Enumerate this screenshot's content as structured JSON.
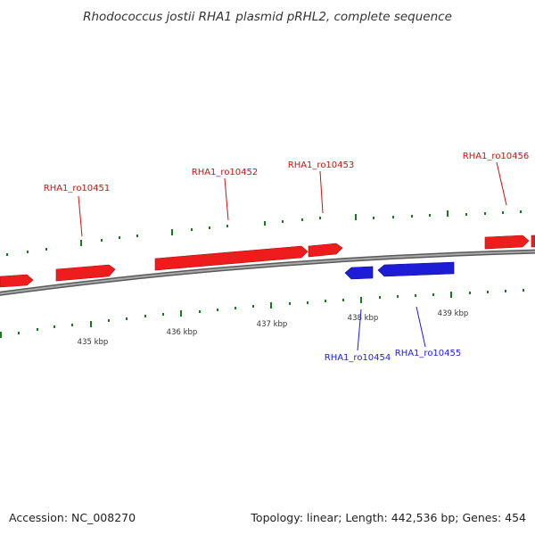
{
  "title": "Rhodococcus jostii RHA1 plasmid pRHL2, complete sequence",
  "footer": {
    "accession": "Accession: NC_008270",
    "topology": "Topology: linear; Length: 442,536 bp; Genes: 454"
  },
  "colors": {
    "forward": "#ee1c1c",
    "reverse": "#1d1dd8",
    "tick": "#1a7a1a",
    "backbone": "#888888"
  },
  "scale_labels": [
    "435 kbp",
    "436 kbp",
    "437 kbp",
    "438 kbp",
    "439 kbp"
  ],
  "forward_genes": [
    "RHA1_ro10451",
    "RHA1_ro10452",
    "RHA1_ro10453",
    "RHA1_ro10456"
  ],
  "reverse_genes": [
    "RHA1_ro10454",
    "RHA1_ro10455"
  ]
}
